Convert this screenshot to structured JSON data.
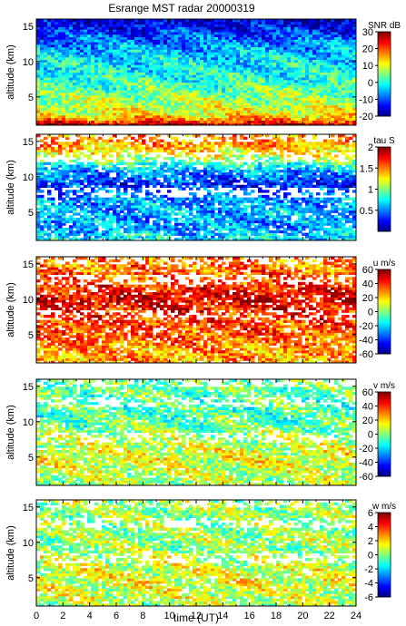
{
  "title": "Esrange MST radar 20000319",
  "chart_data": [
    {
      "type": "heatmap",
      "quantity": "SNR",
      "colorbar_label": "SNR dB",
      "colorbar_ticks": [
        -20,
        -10,
        0,
        10,
        20,
        30
      ],
      "clim": [
        -20,
        30
      ],
      "xlim": [
        0,
        24
      ],
      "ylim": [
        1,
        16
      ],
      "ylabel": "altitude (km)",
      "ytick_labels": [
        "5",
        "10",
        "15"
      ],
      "profile_by_altitude_km": [
        [
          1,
          28
        ],
        [
          2,
          15
        ],
        [
          3,
          10
        ],
        [
          4,
          8
        ],
        [
          5,
          6
        ],
        [
          6,
          4
        ],
        [
          7,
          2
        ],
        [
          8,
          0
        ],
        [
          9,
          -1
        ],
        [
          10,
          -2
        ],
        [
          11,
          -4
        ],
        [
          12,
          -6
        ],
        [
          13,
          -8
        ],
        [
          14,
          -11
        ],
        [
          15,
          -14
        ],
        [
          16,
          -16
        ]
      ]
    },
    {
      "type": "heatmap",
      "quantity": "tau",
      "colorbar_label": "tau S",
      "colorbar_ticks": [
        0.5,
        1,
        1.5,
        2
      ],
      "clim": [
        0,
        2
      ],
      "xlim": [
        0,
        24
      ],
      "ylim": [
        1,
        16
      ],
      "ylabel": "altitude (km)",
      "ytick_labels": [
        "5",
        "10",
        "15"
      ],
      "profile_by_altitude_km": [
        [
          1,
          0.75
        ],
        [
          3,
          0.55
        ],
        [
          5,
          0.6
        ],
        [
          7,
          0.55
        ],
        [
          9,
          0.3
        ],
        [
          11,
          0.6
        ],
        [
          13,
          1.2
        ],
        [
          15,
          1.5
        ]
      ]
    },
    {
      "type": "heatmap",
      "quantity": "u",
      "colorbar_label": "u m/s",
      "colorbar_ticks": [
        -60,
        -40,
        -20,
        0,
        20,
        40,
        60
      ],
      "clim": [
        -60,
        60
      ],
      "xlim": [
        0,
        24
      ],
      "ylim": [
        1,
        16
      ],
      "ylabel": "altitude (km)",
      "ytick_labels": [
        "5",
        "10",
        "15"
      ],
      "profile_by_altitude_km": [
        [
          1,
          25
        ],
        [
          3,
          28
        ],
        [
          5,
          35
        ],
        [
          7,
          38
        ],
        [
          9,
          45
        ],
        [
          10,
          50
        ],
        [
          11,
          45
        ],
        [
          13,
          35
        ],
        [
          15,
          30
        ]
      ]
    },
    {
      "type": "heatmap",
      "quantity": "v",
      "colorbar_label": "v m/s",
      "colorbar_ticks": [
        -60,
        -40,
        -20,
        0,
        20,
        40,
        60
      ],
      "clim": [
        -60,
        60
      ],
      "xlim": [
        0,
        24
      ],
      "ylim": [
        1,
        16
      ],
      "ylabel": "altitude (km)",
      "ytick_labels": [
        "5",
        "10",
        "15"
      ],
      "profile_by_altitude_km": [
        [
          1,
          5
        ],
        [
          3,
          8
        ],
        [
          5,
          12
        ],
        [
          7,
          8
        ],
        [
          9,
          0
        ],
        [
          11,
          -6
        ],
        [
          13,
          -5
        ],
        [
          15,
          -2
        ]
      ]
    },
    {
      "type": "heatmap",
      "quantity": "w",
      "colorbar_label": "w m/s",
      "colorbar_ticks": [
        -6,
        -4,
        -2,
        0,
        2,
        4,
        6
      ],
      "clim": [
        -6,
        6
      ],
      "xlim": [
        0,
        24
      ],
      "ylim": [
        1,
        16
      ],
      "ylabel": "altitude (km)",
      "ytick_labels": [
        "5",
        "10",
        "15"
      ],
      "xlabel": "time (UT)",
      "xtick_labels": [
        "0",
        "2",
        "4",
        "6",
        "8",
        "10",
        "12",
        "14",
        "16",
        "18",
        "20",
        "22",
        "24"
      ],
      "profile_by_altitude_km": [
        [
          1,
          0.5
        ],
        [
          3,
          1.0
        ],
        [
          5,
          1.2
        ],
        [
          7,
          0.8
        ],
        [
          9,
          0.3
        ],
        [
          11,
          0.4
        ],
        [
          13,
          0.2
        ],
        [
          15,
          0.3
        ]
      ]
    }
  ]
}
